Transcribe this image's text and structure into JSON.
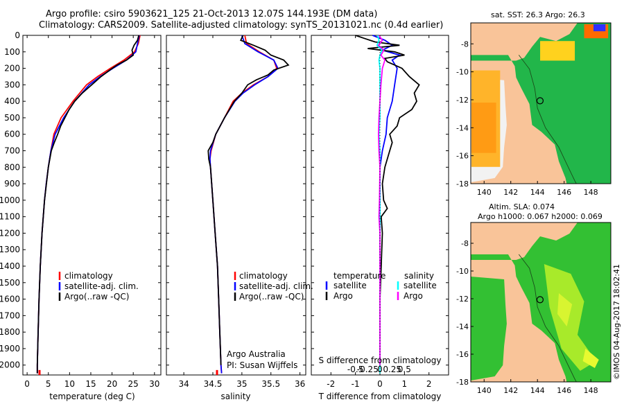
{
  "title_line1": "Argo profile: csiro 5903621_125 21-Oct-2013 12.07S 144.193E (DM data)",
  "title_line2": "Climatology: CARS2009. Satellite-adjusted climatology: synTS_20131021.nc (0.4d earlier)",
  "colors": {
    "climatology": "#ff0000",
    "satellite": "#0000ff",
    "argo": "#000000",
    "sal_satellite": "#00ffff",
    "sal_argo": "#ff00ff",
    "land": "#f9c499",
    "ocean_low": "#00c000",
    "ocean_warm": "#ffa000"
  },
  "legend": {
    "climatology": "climatology",
    "satellite_clim": "satellite-adj. clim.",
    "argo": "Argo(..raw -QC)",
    "temperature": "temperature",
    "salinity": "salinity",
    "satellite": "satellite",
    "argo_short": "Argo"
  },
  "credit": {
    "line1": "Argo Australia",
    "line2": "PI: Susan Wijffels"
  },
  "imos_stamp": "©IMOS 04-Aug-2017 18:02:41",
  "map_top_title": "sat. SST: 26.3  Argo: 26.3",
  "map_bottom_title1": "Altim. SLA: 0.074",
  "map_bottom_title2": "Argo h1000: 0.067  h2000: 0.069",
  "chart_data": [
    {
      "type": "line",
      "name": "temperature-profile",
      "xlabel": "temperature (deg C)",
      "ylabel": "depth",
      "xlim": [
        -1,
        31.5
      ],
      "ylim": [
        2060,
        0
      ],
      "xticks": [
        0,
        5,
        10,
        15,
        20,
        25,
        30
      ],
      "yticks": [
        0,
        100,
        200,
        300,
        400,
        500,
        600,
        700,
        800,
        900,
        1000,
        1100,
        1200,
        1300,
        1400,
        1500,
        1600,
        1700,
        1800,
        1900,
        2000
      ],
      "series": [
        {
          "name": "climatology",
          "color": "red",
          "depth": [
            0,
            50,
            100,
            150,
            200,
            250,
            300,
            400,
            500,
            600,
            700,
            800,
            900,
            1000,
            1200,
            1400,
            1600,
            1800,
            2000,
            2050
          ],
          "values": [
            26.6,
            26.2,
            25.3,
            22.8,
            19.6,
            16.6,
            14.0,
            10.8,
            8.0,
            6.3,
            5.6,
            5.0,
            4.5,
            4.1,
            3.5,
            3.1,
            2.8,
            2.6,
            2.4,
            2.4
          ]
        },
        {
          "name": "satellite-adj. clim.",
          "color": "blue",
          "depth": [
            0,
            50,
            100,
            150,
            200,
            250,
            300,
            400,
            500,
            600,
            700,
            800,
            900,
            1000,
            1200,
            1400,
            1600,
            1800,
            2000,
            2050
          ],
          "values": [
            26.4,
            26.0,
            25.6,
            23.4,
            20.2,
            17.2,
            14.6,
            11.2,
            8.6,
            6.6,
            5.6,
            5.0,
            4.5,
            4.1,
            3.5,
            3.1,
            2.8,
            2.6,
            2.4,
            2.4
          ]
        },
        {
          "name": "Argo(..raw -QC)",
          "color": "black",
          "depth": [
            0,
            30,
            60,
            90,
            120,
            150,
            180,
            210,
            250,
            300,
            350,
            400,
            450,
            500,
            550,
            600,
            650,
            700,
            800,
            1000,
            1200,
            1400,
            1600,
            1800,
            2000,
            2050
          ],
          "values": [
            26.3,
            26.0,
            25.2,
            24.7,
            25.0,
            23.4,
            21.2,
            19.5,
            17.4,
            15.2,
            13.0,
            11.2,
            9.9,
            8.9,
            7.9,
            7.2,
            6.4,
            5.7,
            5.0,
            4.1,
            3.5,
            3.1,
            2.8,
            2.6,
            2.4,
            2.4
          ]
        }
      ]
    },
    {
      "type": "line",
      "name": "salinity-profile",
      "xlabel": "salinity",
      "ylabel": "depth",
      "xlim": [
        33.7,
        36.1
      ],
      "ylim": [
        2060,
        0
      ],
      "xticks": [
        34,
        34.5,
        35,
        35.5,
        36
      ],
      "series": [
        {
          "name": "climatology",
          "color": "red",
          "depth": [
            0,
            50,
            100,
            150,
            200,
            250,
            300,
            350,
            400,
            500,
            600,
            700,
            750,
            800,
            900,
            1000,
            1200,
            1400,
            1600,
            1800,
            2000,
            2050
          ],
          "values": [
            35.05,
            35.08,
            35.3,
            35.55,
            35.6,
            35.45,
            35.2,
            35.0,
            34.85,
            34.7,
            34.55,
            34.47,
            34.45,
            34.46,
            34.48,
            34.5,
            34.54,
            34.58,
            34.6,
            34.62,
            34.64,
            34.65
          ]
        },
        {
          "name": "satellite-adj. clim.",
          "color": "blue",
          "depth": [
            0,
            50,
            100,
            150,
            200,
            250,
            300,
            350,
            400,
            500,
            600,
            700,
            750,
            800,
            900,
            1000,
            1200,
            1400,
            1600,
            1800,
            2000,
            2050
          ],
          "values": [
            35.0,
            35.05,
            35.28,
            35.55,
            35.62,
            35.45,
            35.22,
            35.02,
            34.88,
            34.7,
            34.55,
            34.46,
            34.45,
            34.46,
            34.48,
            34.5,
            34.54,
            34.58,
            34.6,
            34.62,
            34.64,
            34.65
          ]
        },
        {
          "name": "Argo(..raw -QC)",
          "color": "black",
          "depth": [
            0,
            30,
            60,
            90,
            120,
            150,
            180,
            210,
            240,
            270,
            300,
            350,
            400,
            500,
            600,
            650,
            700,
            750,
            800,
            900,
            1000,
            1200,
            1400,
            1600,
            1800,
            2000
          ],
          "values": [
            35.02,
            34.98,
            35.2,
            35.4,
            35.5,
            35.72,
            35.8,
            35.55,
            35.45,
            35.25,
            35.1,
            35.0,
            34.87,
            34.7,
            34.55,
            34.5,
            34.42,
            34.43,
            34.46,
            34.48,
            34.5,
            34.54,
            34.58,
            34.6,
            34.62,
            34.64
          ]
        }
      ]
    },
    {
      "type": "line",
      "name": "difference-profile",
      "xlabel_T": "T difference from climatology",
      "xlabel_S": "S difference from climatology",
      "xlim_T": [
        -2.8,
        2.8
      ],
      "xticks_T": [
        -2,
        -1,
        0,
        1,
        2
      ],
      "xticks_S_labels": [
        "-0.5",
        "-0.25",
        "0",
        "0.25",
        "0.5"
      ],
      "xticks_S_values": [
        -0.5,
        -0.25,
        0,
        0.25,
        0.5
      ],
      "ylim": [
        2060,
        0
      ],
      "series": [
        {
          "name": "temperature satellite",
          "color": "blue",
          "units": "T",
          "depth": [
            0,
            30,
            60,
            90,
            120,
            150,
            200,
            300,
            400,
            500,
            600,
            700,
            800,
            1000,
            1200,
            1500,
            1800,
            2000
          ],
          "values": [
            -0.3,
            0.2,
            0.5,
            0.1,
            0.8,
            0.5,
            0.7,
            0.6,
            0.5,
            0.3,
            0.25,
            0.1,
            0.0,
            0.0,
            0.0,
            0.0,
            0.0,
            0.0
          ]
        },
        {
          "name": "temperature Argo",
          "color": "black",
          "units": "T",
          "depth": [
            0,
            20,
            40,
            60,
            80,
            100,
            120,
            140,
            160,
            180,
            200,
            250,
            300,
            350,
            400,
            450,
            500,
            550,
            600,
            650,
            700,
            800,
            900,
            1000,
            1050,
            1100,
            1200,
            1400,
            1600,
            1800,
            2000
          ],
          "values": [
            -1.0,
            -0.6,
            -0.2,
            0.8,
            -0.5,
            0.6,
            1.0,
            0.2,
            0.3,
            0.6,
            0.9,
            1.2,
            1.6,
            1.4,
            1.5,
            1.3,
            0.8,
            0.7,
            0.4,
            0.5,
            0.4,
            0.2,
            0.1,
            0.15,
            0.3,
            0.05,
            0.1,
            0.05,
            0.0,
            0.0,
            0.0
          ]
        },
        {
          "name": "salinity satellite",
          "color": "cyan",
          "units": "S",
          "depth": [
            0,
            30,
            60,
            90,
            120,
            150,
            200,
            300,
            400,
            500,
            600,
            700,
            800,
            1000,
            1200,
            1500,
            1800,
            2000,
            2050
          ],
          "values": [
            -0.05,
            -0.02,
            -0.06,
            0.04,
            0.0,
            -0.02,
            0.0,
            0.0,
            0.0,
            0.0,
            -0.02,
            0.0,
            0.0,
            0.0,
            0.0,
            0.0,
            0.0,
            0.0,
            0.0
          ]
        },
        {
          "name": "salinity Argo",
          "color": "magenta",
          "units": "S",
          "depth": [
            0,
            30,
            60,
            90,
            120,
            150,
            200,
            300,
            400,
            500,
            600,
            700,
            800,
            1000,
            1100,
            1200,
            1500,
            1800,
            2000
          ],
          "values": [
            -0.02,
            0.05,
            -0.03,
            0.08,
            0.02,
            0.1,
            0.05,
            0.02,
            0.0,
            -0.02,
            -0.03,
            -0.02,
            0.0,
            -0.01,
            -0.02,
            0.0,
            0.0,
            0.0,
            0.0
          ]
        }
      ]
    },
    {
      "type": "heatmap",
      "name": "sst-map",
      "title": "sat. SST: 26.3  Argo: 26.3",
      "xlim": [
        139,
        149.5
      ],
      "ylim": [
        -18,
        -6.5
      ],
      "xticks": [
        140,
        142,
        144,
        146,
        148
      ],
      "yticks": [
        -8,
        -10,
        -12,
        -14,
        -16,
        -18
      ],
      "argo_position": [
        144.193,
        -12.07
      ]
    },
    {
      "type": "heatmap",
      "name": "sla-map",
      "title": "Altim. SLA: 0.074",
      "xlim": [
        139,
        149.5
      ],
      "ylim": [
        -18,
        -6.5
      ],
      "xticks": [
        140,
        142,
        144,
        146,
        148
      ],
      "yticks": [
        -8,
        -10,
        -12,
        -14,
        -16,
        -18
      ],
      "argo_position": [
        144.193,
        -12.07
      ]
    }
  ]
}
